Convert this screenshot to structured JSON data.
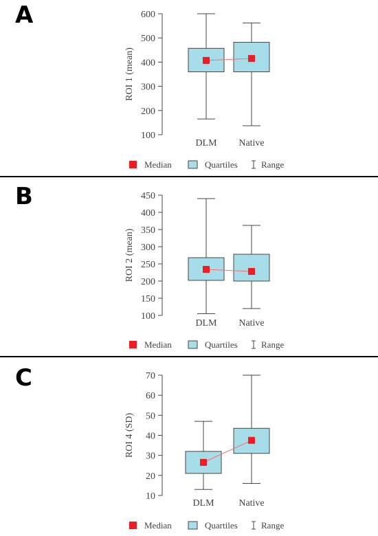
{
  "chart_data": [
    {
      "type": "box",
      "panel_label": "A",
      "ylabel": "ROI 1 (mean)",
      "ylim": [
        100,
        600
      ],
      "yticks": [
        100,
        200,
        300,
        400,
        500,
        600
      ],
      "categories": [
        "DLM",
        "Native"
      ],
      "boxes": [
        {
          "category": "DLM",
          "min": 165,
          "q1": 360,
          "median": 407,
          "q3": 457,
          "max": 600
        },
        {
          "category": "Native",
          "min": 137,
          "q1": 360,
          "median": 415,
          "q3": 482,
          "max": 562
        }
      ],
      "legend": [
        "Median",
        "Quartiles",
        "Range"
      ]
    },
    {
      "type": "box",
      "panel_label": "B",
      "ylabel": "ROI 2 (mean)",
      "ylim": [
        100,
        450
      ],
      "yticks": [
        100,
        150,
        200,
        250,
        300,
        350,
        400,
        450
      ],
      "categories": [
        "DLM",
        "Native"
      ],
      "boxes": [
        {
          "category": "DLM",
          "min": 105,
          "q1": 202,
          "median": 234,
          "q3": 268,
          "max": 440
        },
        {
          "category": "Native",
          "min": 120,
          "q1": 200,
          "median": 228,
          "q3": 278,
          "max": 362
        }
      ],
      "legend": [
        "Median",
        "Quartiles",
        "Range"
      ]
    },
    {
      "type": "box",
      "panel_label": "C",
      "ylabel": "ROI 4 (SD)",
      "ylim": [
        10,
        70
      ],
      "yticks": [
        10,
        20,
        30,
        40,
        50,
        60,
        70
      ],
      "categories": [
        "DLM",
        "Native"
      ],
      "boxes": [
        {
          "category": "DLM",
          "min": 13,
          "q1": 21,
          "median": 26.5,
          "q3": 32,
          "max": 47
        },
        {
          "category": "Native",
          "min": 16,
          "q1": 31,
          "median": 37.5,
          "q3": 43.5,
          "max": 70
        }
      ],
      "legend": [
        "Median",
        "Quartiles",
        "Range"
      ]
    }
  ],
  "colors": {
    "box_fill": "#a6dde8",
    "median": "#ee1c25",
    "connector": "#ff6b6b",
    "axis": "#444444"
  }
}
